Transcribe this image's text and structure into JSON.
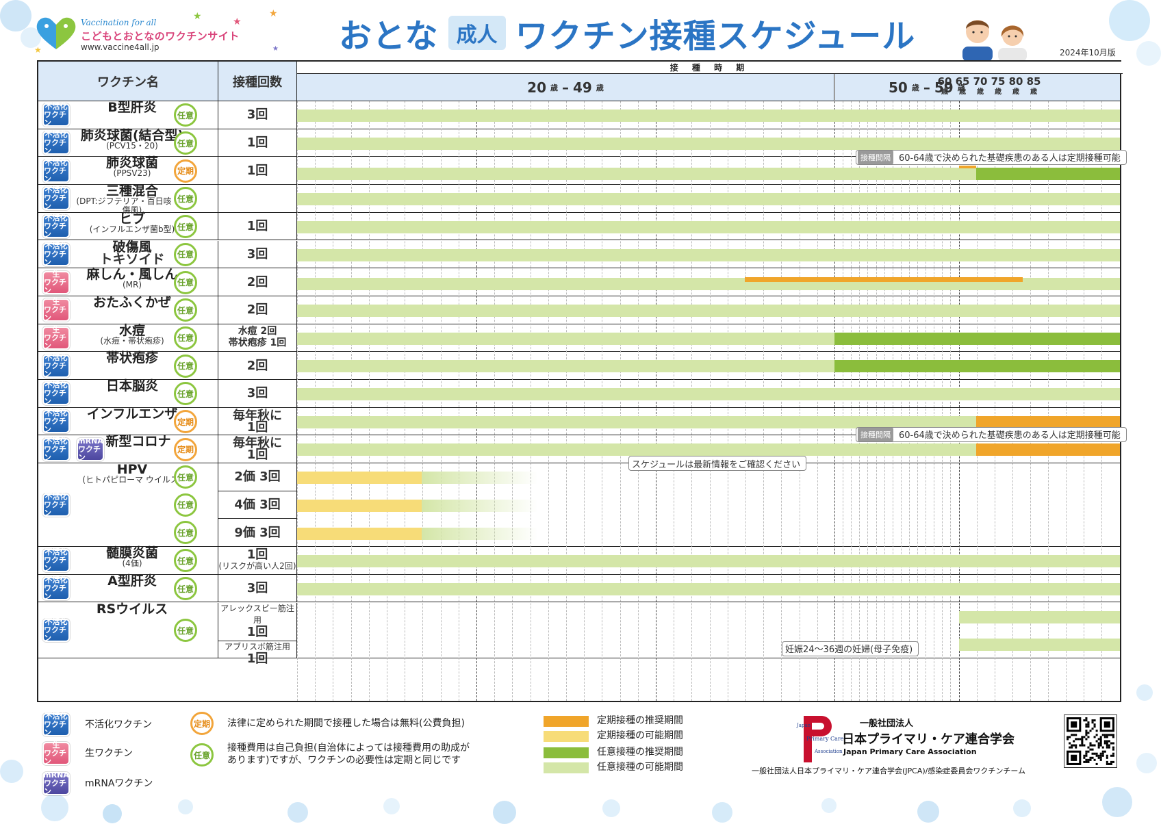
{
  "header": {
    "logo_tagline": "Vaccination for all",
    "logo_name": "こどもとおとなのワクチンサイト",
    "logo_url": "www.vaccine4all.jp",
    "title_pre": "おとな",
    "title_pill": "成人",
    "title_main": "ワクチン接種スケジュール",
    "edition": "2024年10月版"
  },
  "columns": {
    "vaccine_name": "ワクチン名",
    "dose_count": "接種回数",
    "period": "接 種 時 期",
    "band_20_49": {
      "from": "20",
      "to": "49",
      "unit": "歳"
    },
    "band_50_59": {
      "from": "50",
      "to": "59",
      "unit": "歳"
    },
    "dash": "–",
    "small_ages": [
      "60",
      "65",
      "70",
      "75",
      "80",
      "85"
    ],
    "age_unit": "歳"
  },
  "badge_labels": {
    "inactivated": [
      "不活化",
      "ワクチン"
    ],
    "live": [
      "生",
      "ワクチン"
    ],
    "mrna": [
      "mRNA",
      "ワクチン"
    ],
    "optional": "任意",
    "routine": "定期"
  },
  "rows": [
    {
      "name": "B型肝炎",
      "sub": "",
      "type": "inactivated",
      "status": "optional",
      "count": [
        "3回"
      ]
    },
    {
      "name": "肺炎球菌(結合型)",
      "sub": "(PCV15・20)",
      "type": "inactivated",
      "status": "optional",
      "count": [
        "1回"
      ]
    },
    {
      "name": "肺炎球菌",
      "sub": "(PPSV23)",
      "type": "inactivated",
      "status": "routine",
      "count": [
        "1回"
      ]
    },
    {
      "name": "三種混合",
      "sub": "(DPT:ジフテリア・百日咳・破傷風)",
      "type": "inactivated",
      "status": "optional",
      "count": [
        ""
      ]
    },
    {
      "name": "ヒブ",
      "sub": "(インフルエンザ菌b型)",
      "type": "inactivated",
      "status": "optional",
      "count": [
        "1回"
      ]
    },
    {
      "name": "破傷風",
      "sub": "トキソイド",
      "type": "inactivated",
      "status": "optional",
      "count": [
        "3回"
      ]
    },
    {
      "name": "麻しん・風しん",
      "sub": "(MR)",
      "type": "live",
      "status": "optional",
      "count": [
        "2回"
      ]
    },
    {
      "name": "おたふくかぜ",
      "sub": "",
      "type": "live",
      "status": "optional",
      "count": [
        "2回"
      ]
    },
    {
      "name": "水痘",
      "sub": "(水痘・帯状疱疹)",
      "type": "live",
      "status": "optional",
      "count": [
        "水痘 2回",
        "帯状疱疹 1回"
      ]
    },
    {
      "name": "帯状疱疹",
      "sub": "",
      "type": "inactivated",
      "status": "optional",
      "count": [
        "2回"
      ]
    },
    {
      "name": "日本脳炎",
      "sub": "",
      "type": "inactivated",
      "status": "optional",
      "count": [
        "3回"
      ]
    },
    {
      "name": "インフルエンザ",
      "sub": "",
      "type": "inactivated",
      "status": "routine",
      "count": [
        "毎年秋に",
        "1回"
      ]
    },
    {
      "name": "新型コロナ",
      "sub": "",
      "type": "inactivated+mrna",
      "status": "routine",
      "count": [
        "毎年秋に",
        "1回"
      ]
    },
    {
      "name": "HPV",
      "sub": "(ヒトパピローマ ウイルス)",
      "type": "inactivated",
      "status": "optional",
      "count": [
        "2価 3回",
        "4価 3回",
        "9価 3回"
      ]
    },
    {
      "name": "髄膜炎菌",
      "sub": "(4価)",
      "type": "inactivated",
      "status": "optional",
      "count": [
        "1回",
        "(リスクが高い人2回)"
      ]
    },
    {
      "name": "A型肝炎",
      "sub": "",
      "type": "inactivated",
      "status": "optional",
      "count": [
        "3回"
      ]
    },
    {
      "name": "RSウイルス",
      "sub": "",
      "type": "inactivated",
      "status": "optional",
      "count": [
        "アレックスビー筋注用",
        "1回",
        "アブリスボ筋注用",
        "1回"
      ]
    }
  ],
  "callouts": {
    "interval_tag": "接種間隔",
    "ppsv_note": "60-64歳で決められた基礎疾患のある人は定期接種可能",
    "flu_note": "60-64歳で決められた基礎疾患のある人は定期接種可能",
    "latest_info": "スケジュールは最新情報をご確認ください",
    "rsv_pregnancy": "妊娠24〜36週の妊婦(母子免疫)"
  },
  "legend": {
    "inactivated": "不活化ワクチン",
    "live": "生ワクチン",
    "mrna": "mRNAワクチン",
    "routine_desc": "法律に定められた期間で接種した場合は無料(公費負担)",
    "optional_desc_1": "接種費用は自己負担(自治体によっては接種費用の助成が",
    "optional_desc_2": "あります)ですが、ワクチンの必要性は定期と同じです",
    "sw_routine_rec": "定期接種の推奨期間",
    "sw_routine_pos": "定期接種の可能期間",
    "sw_optional_rec": "任意接種の推奨期間",
    "sw_optional_pos": "任意接種の可能期間"
  },
  "org": {
    "mark_text": "Japan Primary Care Association",
    "line1": "一般社団法人",
    "line2": "日本プライマリ・ケア連合学会",
    "line3": "Japan Primary Care Association",
    "footer": "一般社団法人日本プライマリ・ケア連合学会(JPCA)/感染症委員会ワクチンチーム"
  },
  "colors": {
    "routine_recommended": "#f0a52a",
    "routine_possible": "#f7dc78",
    "optional_recommended": "#8bbd3c",
    "optional_possible": "#d4e6a8",
    "header_fill": "#dbe9f8",
    "title": "#2b75c4"
  }
}
